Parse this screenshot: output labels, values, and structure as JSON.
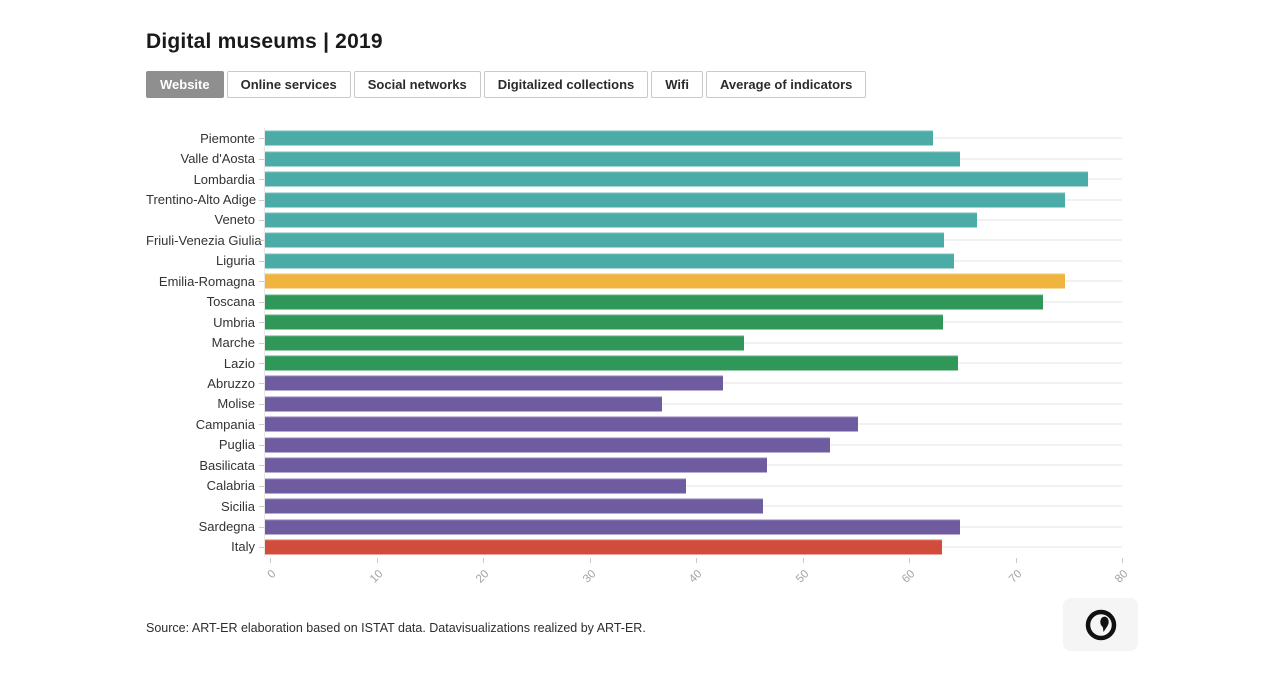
{
  "title": "Digital museums | 2019",
  "tabs": [
    {
      "label": "Website",
      "selected": true
    },
    {
      "label": "Online services",
      "selected": false
    },
    {
      "label": "Social networks",
      "selected": false
    },
    {
      "label": "Digitalized collections",
      "selected": false
    },
    {
      "label": "Wifi",
      "selected": false
    },
    {
      "label": "Average of indicators",
      "selected": false
    }
  ],
  "chart_data": {
    "type": "bar",
    "orientation": "horizontal",
    "title": "Digital museums | 2019",
    "xlabel": "",
    "ylabel": "",
    "xlim": [
      0,
      80
    ],
    "x_ticks": [
      0,
      10,
      20,
      30,
      40,
      50,
      60,
      70,
      80
    ],
    "grid": false,
    "legend": "none",
    "categories": [
      "Piemonte",
      "Valle d'Aosta",
      "Lombardia",
      "Trentino-Alto Adige",
      "Veneto",
      "Friuli-Venezia Giulia",
      "Liguria",
      "Emilia-Romagna",
      "Toscana",
      "Umbria",
      "Marche",
      "Lazio",
      "Abruzzo",
      "Molise",
      "Campania",
      "Puglia",
      "Basilicata",
      "Calabria",
      "Sicilia",
      "Sardegna",
      "Italy"
    ],
    "values": [
      62.4,
      64.9,
      76.8,
      74.7,
      66.5,
      63.4,
      64.3,
      74.7,
      72.6,
      63.3,
      44.7,
      64.7,
      42.8,
      37.1,
      55.4,
      52.7,
      46.9,
      39.3,
      46.5,
      64.9,
      63.2
    ],
    "bar_colors": [
      "#4BACA7",
      "#4BACA7",
      "#4BACA7",
      "#4BACA7",
      "#4BACA7",
      "#4BACA7",
      "#4BACA7",
      "#EFB53F",
      "#2F9858",
      "#2F9858",
      "#2F9858",
      "#2F9858",
      "#6F5B9F",
      "#6F5B9F",
      "#6F5B9F",
      "#6F5B9F",
      "#6F5B9F",
      "#6F5B9F",
      "#6F5B9F",
      "#6F5B9F",
      "#D24C3C"
    ],
    "color_legend": {
      "north_teal": "#4BACA7",
      "emilia_romagna_yellow": "#EFB53F",
      "center_green": "#2F9858",
      "south_purple": "#6F5B9F",
      "italy_red": "#D24C3C"
    }
  },
  "source": "Source: ART-ER elaboration based on ISTAT data. Datavisualizations realized by ART-ER.",
  "logo": {
    "name": "circle-apostrophe-logo",
    "color": "#111111",
    "background": "#f5f5f5"
  }
}
